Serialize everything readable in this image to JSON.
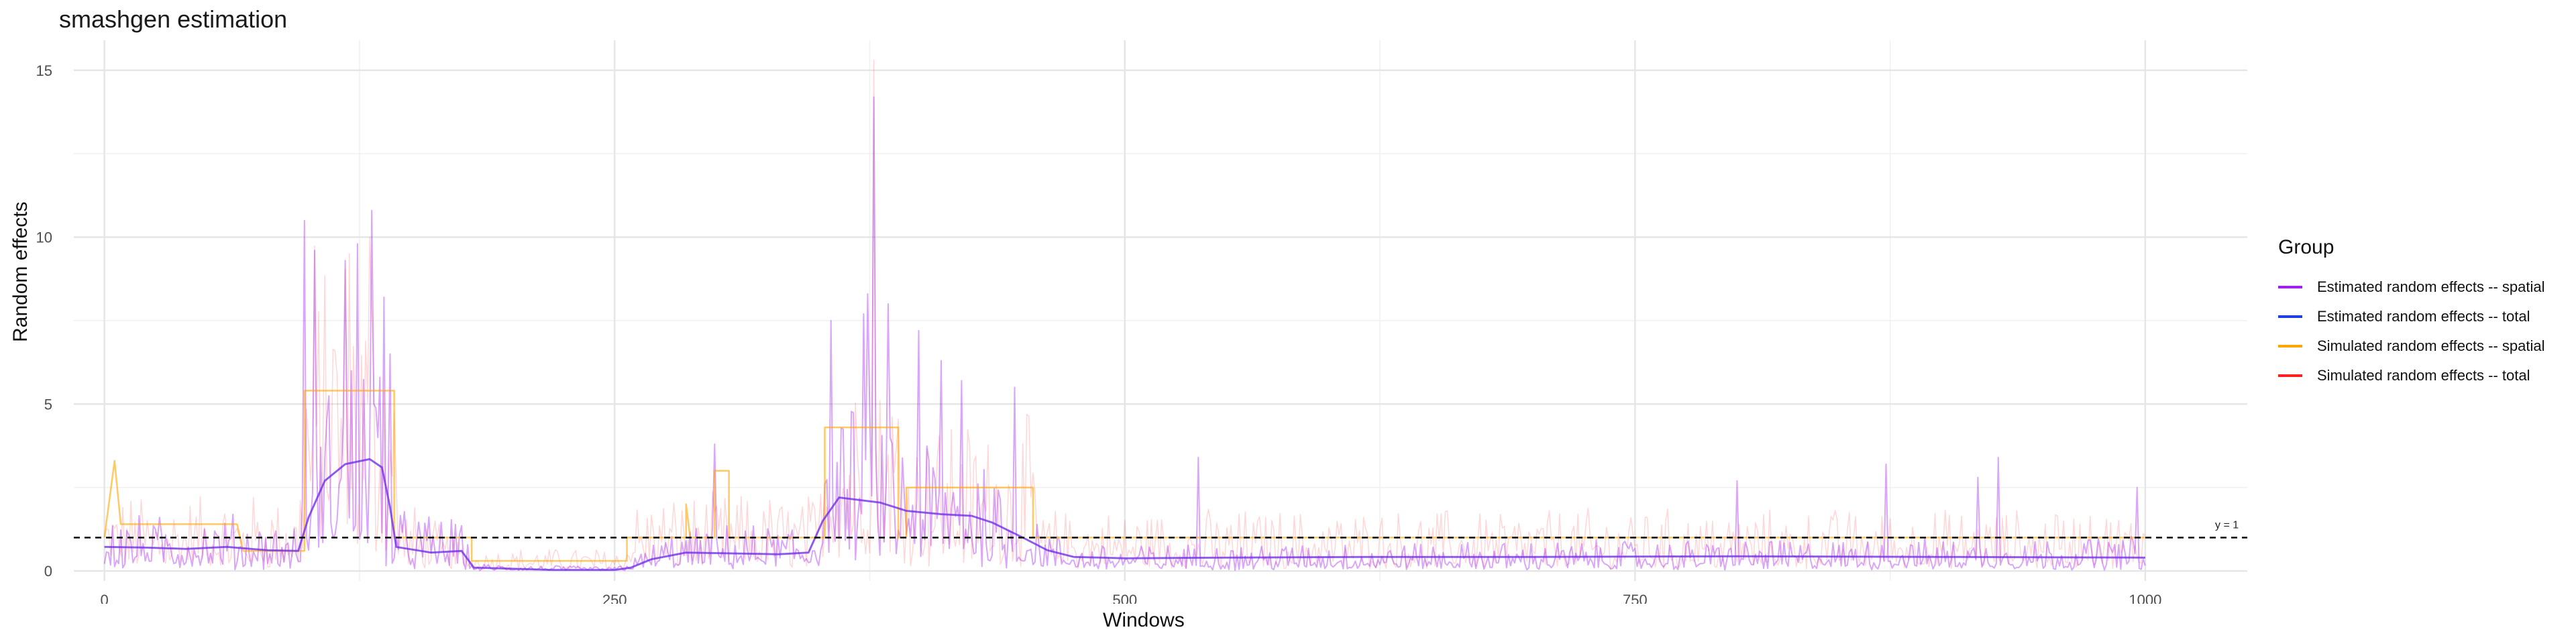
{
  "chart_data": {
    "type": "line",
    "title": "smashgen estimation",
    "xlabel": "Windows",
    "ylabel": "Random effects",
    "xlim": [
      -15,
      1050
    ],
    "ylim": [
      -0.3,
      15.9
    ],
    "x_ticks": [
      0,
      250,
      500,
      750,
      1000
    ],
    "y_ticks": [
      0,
      5,
      10,
      15
    ],
    "grid": true,
    "legend_title": "Group",
    "legend_position": "right",
    "reference_line": {
      "y": 1,
      "style": "dashed",
      "label": "y = 1"
    },
    "series": [
      {
        "name": "Estimated random effects -- spatial",
        "color": "#a020f0",
        "kind": "noisy",
        "envelope": [
          [
            0,
            0.8
          ],
          [
            20,
            0.7
          ],
          [
            60,
            0.75
          ],
          [
            95,
            0.6
          ],
          [
            100,
            1.5
          ],
          [
            115,
            3.2
          ],
          [
            130,
            3.4
          ],
          [
            138,
            2.5
          ],
          [
            142,
            0.8
          ],
          [
            175,
            0.7
          ],
          [
            180,
            0.1
          ],
          [
            250,
            0.05
          ],
          [
            260,
            0.2
          ],
          [
            275,
            0.5
          ],
          [
            300,
            0.6
          ],
          [
            345,
            0.6
          ],
          [
            352,
            1.2
          ],
          [
            360,
            2.2
          ],
          [
            380,
            2.1
          ],
          [
            395,
            1.8
          ],
          [
            425,
            1.7
          ],
          [
            445,
            1.0
          ],
          [
            460,
            0.6
          ],
          [
            475,
            0.35
          ],
          [
            520,
            0.35
          ],
          [
            1000,
            0.45
          ]
        ],
        "peaks": [
          [
            98,
            10.5
          ],
          [
            103,
            9.6
          ],
          [
            118,
            9.3
          ],
          [
            124,
            9.8
          ],
          [
            131,
            10.8
          ],
          [
            137,
            8.2
          ],
          [
            140,
            6.5
          ],
          [
            299,
            3.8
          ],
          [
            356,
            7.5
          ],
          [
            372,
            7.7
          ],
          [
            374,
            8.3
          ],
          [
            377,
            14.2
          ],
          [
            384,
            8.0
          ],
          [
            399,
            7.2
          ],
          [
            410,
            6.3
          ],
          [
            420,
            5.7
          ],
          [
            446,
            5.5
          ],
          [
            536,
            3.4
          ],
          [
            800,
            2.7
          ],
          [
            873,
            3.2
          ],
          [
            918,
            2.8
          ],
          [
            928,
            3.4
          ],
          [
            996,
            2.5
          ]
        ]
      },
      {
        "name": "Estimated random effects -- total",
        "color": "#1f3fe0",
        "kind": "smooth",
        "points": [
          [
            0,
            0.72
          ],
          [
            20,
            0.7
          ],
          [
            40,
            0.66
          ],
          [
            60,
            0.72
          ],
          [
            80,
            0.62
          ],
          [
            95,
            0.6
          ],
          [
            100,
            1.6
          ],
          [
            108,
            2.7
          ],
          [
            118,
            3.2
          ],
          [
            130,
            3.35
          ],
          [
            136,
            3.1
          ],
          [
            140,
            1.9
          ],
          [
            143,
            0.72
          ],
          [
            160,
            0.55
          ],
          [
            175,
            0.6
          ],
          [
            181,
            0.1
          ],
          [
            220,
            0.03
          ],
          [
            250,
            0.03
          ],
          [
            258,
            0.1
          ],
          [
            268,
            0.35
          ],
          [
            285,
            0.55
          ],
          [
            330,
            0.5
          ],
          [
            345,
            0.55
          ],
          [
            352,
            1.5
          ],
          [
            360,
            2.2
          ],
          [
            380,
            2.05
          ],
          [
            393,
            1.8
          ],
          [
            410,
            1.7
          ],
          [
            425,
            1.65
          ],
          [
            435,
            1.45
          ],
          [
            450,
            1.0
          ],
          [
            462,
            0.62
          ],
          [
            475,
            0.42
          ],
          [
            500,
            0.38
          ],
          [
            550,
            0.4
          ],
          [
            620,
            0.42
          ],
          [
            700,
            0.42
          ],
          [
            800,
            0.44
          ],
          [
            900,
            0.42
          ],
          [
            1000,
            0.4
          ]
        ]
      },
      {
        "name": "Simulated random effects -- spatial",
        "color": "#ffa500",
        "kind": "step",
        "points": [
          [
            0,
            1.0
          ],
          [
            5,
            3.3
          ],
          [
            8,
            1.4
          ],
          [
            65,
            1.4
          ],
          [
            68,
            0.6
          ],
          [
            98,
            0.6
          ],
          [
            98,
            5.4
          ],
          [
            142,
            5.4
          ],
          [
            142,
            1.0
          ],
          [
            180,
            1.0
          ],
          [
            180,
            0.3
          ],
          [
            256,
            0.3
          ],
          [
            256,
            1.0
          ],
          [
            285,
            1.0
          ],
          [
            285,
            2.0
          ],
          [
            287,
            1.0
          ],
          [
            299,
            1.0
          ],
          [
            299,
            3.0
          ],
          [
            306,
            3.0
          ],
          [
            306,
            1.0
          ],
          [
            353,
            1.0
          ],
          [
            353,
            4.3
          ],
          [
            389,
            4.3
          ],
          [
            389,
            1.0
          ],
          [
            393,
            1.0
          ],
          [
            393,
            2.5
          ],
          [
            455,
            2.5
          ],
          [
            455,
            1.0
          ],
          [
            1000,
            1.0
          ]
        ]
      },
      {
        "name": "Simulated random effects -- total",
        "color": "#ff2020",
        "kind": "noisy",
        "envelope": [
          [
            0,
            1.0
          ],
          [
            95,
            1.0
          ],
          [
            100,
            4.5
          ],
          [
            140,
            4.5
          ],
          [
            145,
            1.0
          ],
          [
            180,
            0.3
          ],
          [
            255,
            0.3
          ],
          [
            260,
            1.0
          ],
          [
            350,
            1.0
          ],
          [
            355,
            3.0
          ],
          [
            390,
            3.0
          ],
          [
            395,
            2.0
          ],
          [
            455,
            2.0
          ],
          [
            460,
            0.8
          ],
          [
            1000,
            0.8
          ]
        ],
        "peaks": [
          [
            377,
            15.3
          ],
          [
            120,
            9.5
          ],
          [
            130,
            10.0
          ]
        ]
      }
    ]
  }
}
